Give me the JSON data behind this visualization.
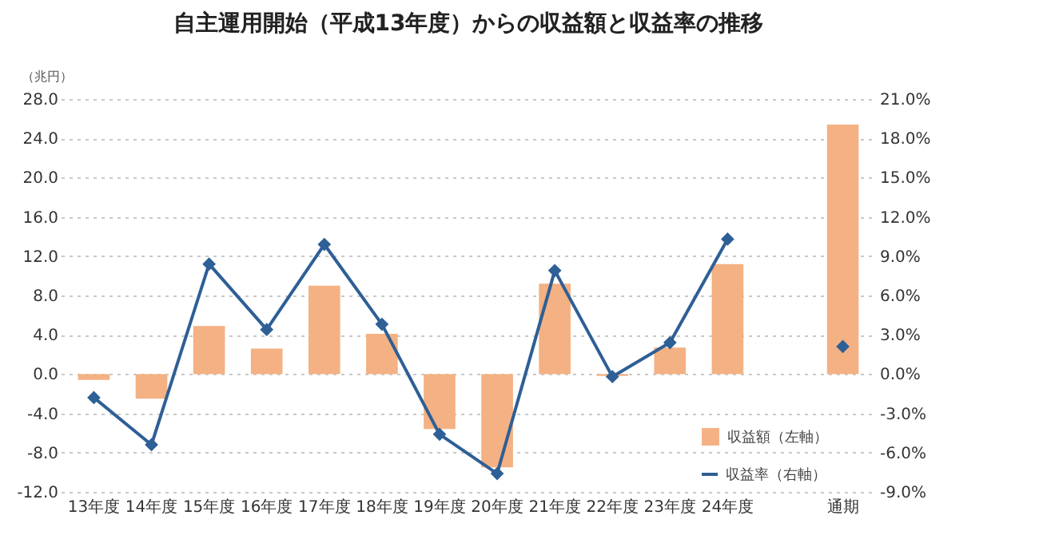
{
  "chart_data": {
    "type": "bar",
    "title": "自主運用開始（平成13年度）からの収益額と収益率の推移",
    "ylabel": "（兆円）",
    "categories": [
      "13年度",
      "14年度",
      "15年度",
      "16年度",
      "17年度",
      "18年度",
      "19年度",
      "20年度",
      "21年度",
      "22年度",
      "23年度",
      "24年度",
      null,
      "通期"
    ],
    "series": [
      {
        "name": "収益額（左軸）",
        "color": "#f4b183",
        "values": [
          -0.6,
          -2.5,
          4.9,
          2.6,
          9.0,
          4.1,
          -5.6,
          -9.5,
          9.2,
          -0.2,
          2.7,
          11.2,
          null,
          25.4
        ]
      },
      {
        "name": "収益率（右軸）",
        "type": "line",
        "axis": "y2",
        "color": "#2e5f96",
        "values": [
          -1.8,
          -5.4,
          8.4,
          3.4,
          9.9,
          3.8,
          -4.6,
          -7.6,
          7.9,
          -0.2,
          2.4,
          10.3,
          null,
          2.1
        ]
      }
    ],
    "ylim": [
      -12,
      28
    ],
    "yticks": [
      {
        "value": -12,
        "label": "-12.0"
      },
      {
        "value": -8,
        "label": "-8.0"
      },
      {
        "value": -4,
        "label": "-4.0"
      },
      {
        "value": 0,
        "label": "0.0"
      },
      {
        "value": 4,
        "label": "4.0"
      },
      {
        "value": 8,
        "label": "8.0"
      },
      {
        "value": 12,
        "label": "12.0"
      },
      {
        "value": 16,
        "label": "16.0"
      },
      {
        "value": 20,
        "label": "20.0"
      },
      {
        "value": 24,
        "label": "24.0"
      },
      {
        "value": 28,
        "label": "28.0"
      }
    ],
    "y2lim": [
      -9,
      21
    ],
    "y2ticks": [
      {
        "value": -9,
        "label": "-9.0%"
      },
      {
        "value": -6,
        "label": "-6.0%"
      },
      {
        "value": -3,
        "label": "-3.0%"
      },
      {
        "value": 0,
        "label": "0.0%"
      },
      {
        "value": 3,
        "label": "3.0%"
      },
      {
        "value": 6,
        "label": "6.0%"
      },
      {
        "value": 9,
        "label": "9.0%"
      },
      {
        "value": 12,
        "label": "12.0%"
      },
      {
        "value": 15,
        "label": "15.0%"
      },
      {
        "value": 18,
        "label": "18.0%"
      },
      {
        "value": 21,
        "label": "21.0%"
      }
    ],
    "grid": "y",
    "legend": "bottom right",
    "marker": "diamond",
    "line_style": "solid"
  }
}
